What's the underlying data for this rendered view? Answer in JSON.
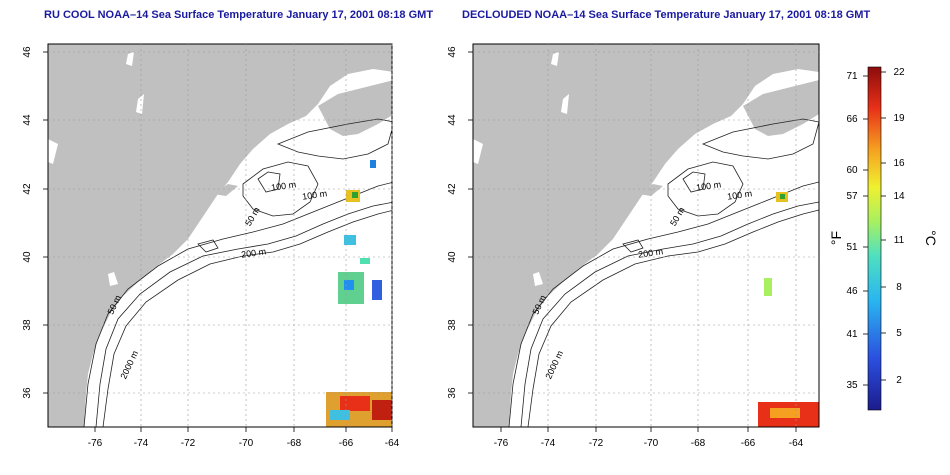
{
  "maps": [
    {
      "title": "RU COOL NOAA–14 Sea Surface Temperature January 17, 2001 08:18 GMT",
      "x_ticks": [
        "-76",
        "-74",
        "-72",
        "-70",
        "-68",
        "-66",
        "-64"
      ],
      "y_ticks": [
        "46",
        "44",
        "42",
        "40",
        "38",
        "36"
      ],
      "contour_labels": [
        "100 m",
        "100 m",
        "50 m",
        "200 m",
        "50 m",
        "2000 m"
      ]
    },
    {
      "title": "DECLOUDED NOAA–14 Sea Surface Temperature January 17, 2001 08:18 GMT",
      "x_ticks": [
        "-76",
        "-74",
        "-72",
        "-70",
        "-68",
        "-66",
        "-64"
      ],
      "y_ticks": [
        "46",
        "44",
        "42",
        "40",
        "38",
        "36"
      ],
      "contour_labels": [
        "100 m",
        "100 m",
        "50 m",
        "200 m",
        "50 m",
        "2000 m"
      ]
    }
  ],
  "colorbar": {
    "fahrenheit_label": "°F",
    "celsius_label": "°C",
    "fahrenheit_ticks": [
      "71",
      "66",
      "60",
      "57",
      "51",
      "46",
      "41",
      "35"
    ],
    "celsius_ticks": [
      "22",
      "19",
      "16",
      "14",
      "11",
      "8",
      "5",
      "2"
    ]
  },
  "colors": {
    "land": "#c0c0c0",
    "ocean": "#ffffff",
    "title": "#1a1aa0",
    "grid": "#9a9a9a"
  }
}
